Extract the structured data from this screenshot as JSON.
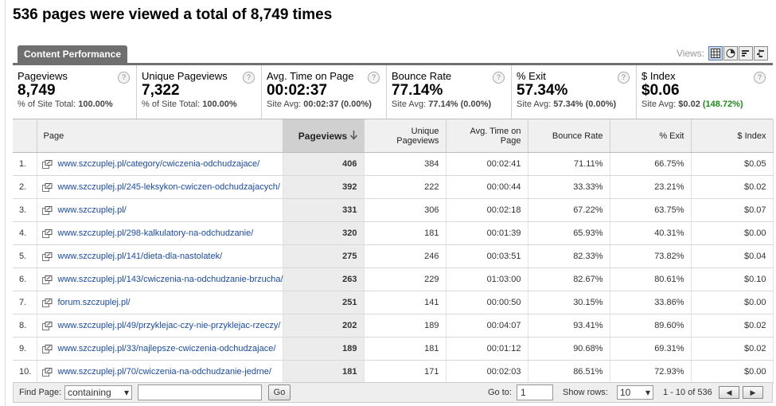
{
  "page_title": "536 pages were viewed a total of 8,749 times",
  "tab_label": "Content Performance",
  "views_label": "Views:",
  "view_icons": [
    "table-view-icon",
    "pie-view-icon",
    "performance-view-icon",
    "comparison-view-icon"
  ],
  "metrics": [
    {
      "label": "Pageviews",
      "value": "8,749",
      "sub_prefix": "% of Site Total:",
      "sub_value": "100.00%",
      "sub_extra": ""
    },
    {
      "label": "Unique Pageviews",
      "value": "7,322",
      "sub_prefix": "% of Site Total:",
      "sub_value": "100.00%",
      "sub_extra": ""
    },
    {
      "label": "Avg. Time on Page",
      "value": "00:02:37",
      "sub_prefix": "Site Avg:",
      "sub_value": "00:02:37 (0.00%)",
      "sub_extra": ""
    },
    {
      "label": "Bounce Rate",
      "value": "77.14%",
      "sub_prefix": "Site Avg:",
      "sub_value": "77.14% (0.00%)",
      "sub_extra": ""
    },
    {
      "label": "% Exit",
      "value": "57.34%",
      "sub_prefix": "Site Avg:",
      "sub_value": "57.34% (0.00%)",
      "sub_extra": ""
    },
    {
      "label": "$ Index",
      "value": "$0.06",
      "sub_prefix": "Site Avg:",
      "sub_value": "$0.02",
      "sub_extra": "(148.72%)"
    }
  ],
  "help_glyph": "?",
  "columns": {
    "page": "Page",
    "pageviews": "Pageviews",
    "unique_line1": "Unique",
    "unique_line2": "Pageviews",
    "avg_line1": "Avg. Time on",
    "avg_line2": "Page",
    "bounce": "Bounce Rate",
    "exit": "% Exit",
    "index": "$ Index"
  },
  "rows": [
    {
      "num": "1.",
      "page": "www.szczuplej.pl/category/cwiczenia-odchudzajace/",
      "pageviews": "406",
      "unique": "384",
      "avg_time": "00:02:41",
      "bounce": "71.11%",
      "exit": "66.75%",
      "index": "$0.05"
    },
    {
      "num": "2.",
      "page": "www.szczuplej.pl/245-leksykon-cwiczen-odchudzajacych/",
      "pageviews": "392",
      "unique": "222",
      "avg_time": "00:00:44",
      "bounce": "33.33%",
      "exit": "23.21%",
      "index": "$0.02"
    },
    {
      "num": "3.",
      "page": "www.szczuplej.pl/",
      "pageviews": "331",
      "unique": "306",
      "avg_time": "00:02:18",
      "bounce": "67.22%",
      "exit": "63.75%",
      "index": "$0.07"
    },
    {
      "num": "4.",
      "page": "www.szczuplej.pl/298-kalkulatory-na-odchudzanie/",
      "pageviews": "320",
      "unique": "181",
      "avg_time": "00:01:39",
      "bounce": "65.93%",
      "exit": "40.31%",
      "index": "$0.00"
    },
    {
      "num": "5.",
      "page": "www.szczuplej.pl/141/dieta-dla-nastolatek/",
      "pageviews": "275",
      "unique": "246",
      "avg_time": "00:03:51",
      "bounce": "82.33%",
      "exit": "73.82%",
      "index": "$0.04"
    },
    {
      "num": "6.",
      "page": "www.szczuplej.pl/143/cwiczenia-na-odchudzanie-brzucha/",
      "pageviews": "263",
      "unique": "229",
      "avg_time": "01:03:00",
      "bounce": "82.67%",
      "exit": "80.61%",
      "index": "$0.10"
    },
    {
      "num": "7.",
      "page": "forum.szczuplej.pl/",
      "pageviews": "251",
      "unique": "141",
      "avg_time": "00:00:50",
      "bounce": "30.15%",
      "exit": "33.86%",
      "index": "$0.00"
    },
    {
      "num": "8.",
      "page": "www.szczuplej.pl/49/przyklejac-czy-nie-przyklejac-rzeczy/",
      "pageviews": "202",
      "unique": "189",
      "avg_time": "00:04:07",
      "bounce": "93.41%",
      "exit": "89.60%",
      "index": "$0.02"
    },
    {
      "num": "9.",
      "page": "www.szczuplej.pl/33/najlepsze-cwiczenia-odchudzajace/",
      "pageviews": "189",
      "unique": "181",
      "avg_time": "00:01:12",
      "bounce": "90.68%",
      "exit": "69.31%",
      "index": "$0.02"
    },
    {
      "num": "10.",
      "page": "www.szczuplej.pl/70/cwiczenia-na-odchudzanie-jedrne/",
      "pageviews": "181",
      "unique": "171",
      "avg_time": "00:02:03",
      "bounce": "86.51%",
      "exit": "72.93%",
      "index": "$0.00"
    }
  ],
  "footer": {
    "find_label": "Find Page:",
    "find_mode": "containing",
    "find_value": "",
    "go_button": "Go",
    "goto_label": "Go to:",
    "goto_value": "1",
    "rows_label": "Show rows:",
    "rows_value": "10",
    "range_text": "1 - 10 of 536",
    "prev_glyph": "◀",
    "next_glyph": "▶"
  }
}
